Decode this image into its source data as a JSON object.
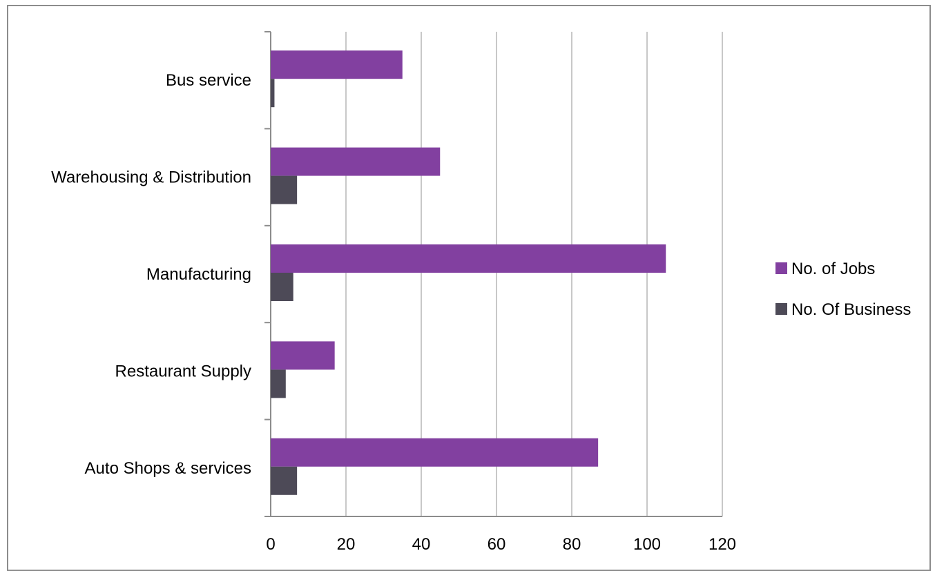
{
  "chart_data": {
    "type": "bar",
    "orientation": "horizontal",
    "categories": [
      "Bus service",
      "Warehousing & Distribution",
      "Manufacturing",
      "Restaurant Supply",
      "Auto Shops & services"
    ],
    "series": [
      {
        "name": "No. of Jobs",
        "color": "#8240a0",
        "values": [
          35,
          45,
          105,
          17,
          87
        ]
      },
      {
        "name": "No. Of Business",
        "color": "#4d4a57",
        "values": [
          1,
          7,
          6,
          4,
          7
        ]
      }
    ],
    "xticks": [
      "0",
      "20",
      "40",
      "60",
      "80",
      "100",
      "120"
    ],
    "xlim": [
      0,
      120
    ],
    "grid": true,
    "legend_position": "right"
  }
}
